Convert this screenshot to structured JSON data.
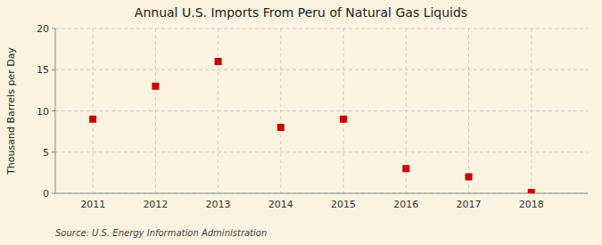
{
  "chart_data": {
    "type": "scatter",
    "title": "Annual U.S. Imports From Peru of Natural Gas Liquids",
    "ylabel": "Thousand Barrels per Day",
    "source": "Source: U.S. Energy Information Administration",
    "x": [
      2011,
      2012,
      2013,
      2014,
      2015,
      2016,
      2017,
      2018
    ],
    "values": [
      9.0,
      13.0,
      16.0,
      8.0,
      9.0,
      3.0,
      2.0,
      0.1
    ],
    "color": "#cc0000",
    "marker": "square",
    "xlim": [
      2010.4,
      2018.9
    ],
    "xticks": [
      2011,
      2012,
      2013,
      2014,
      2015,
      2016,
      2017,
      2018
    ],
    "ylim": [
      0,
      20
    ],
    "yticks": [
      0,
      5,
      10,
      15,
      20
    ],
    "grid": true
  }
}
